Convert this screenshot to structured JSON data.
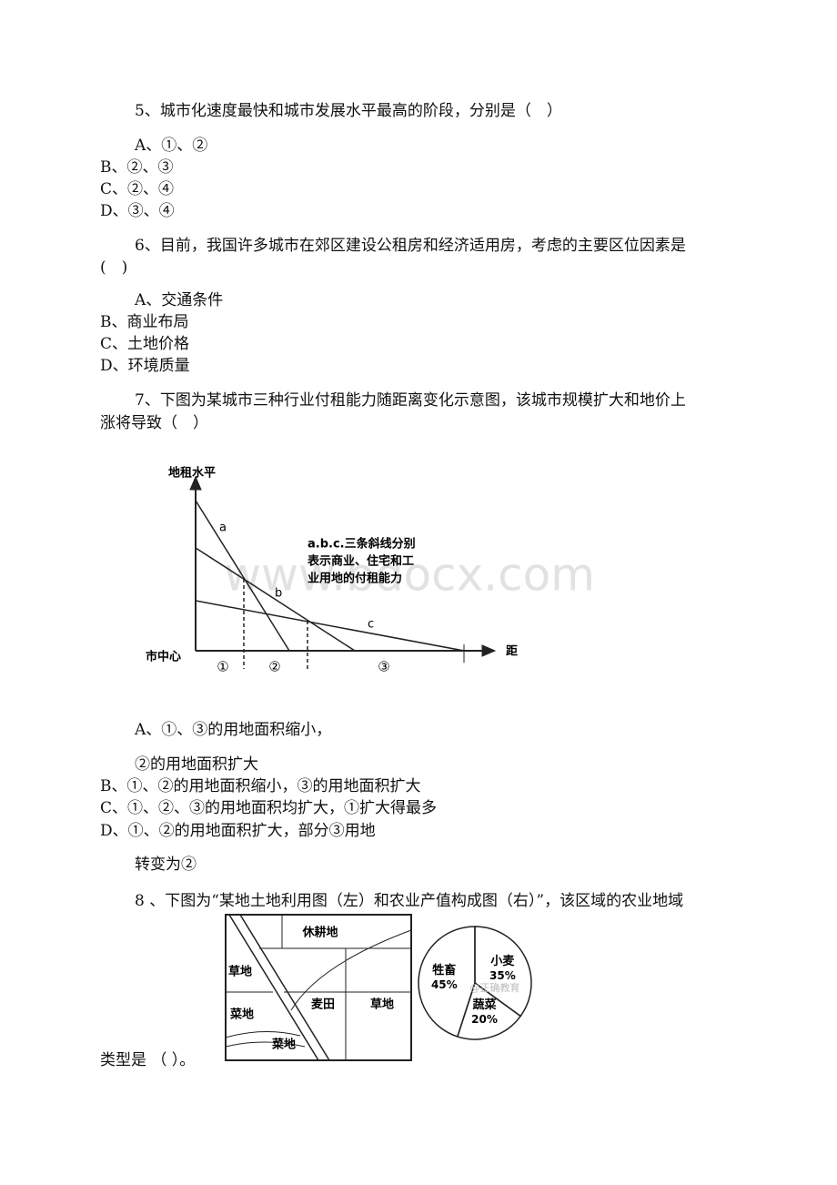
{
  "q5": {
    "stem": [
      "5、城市化速度最快和城市发展水平最高的阶段，分别是（　）"
    ],
    "options": [
      "A、①、②",
      "B、②、③",
      "C、②、④",
      "D、③、④"
    ]
  },
  "q6": {
    "stem": [
      "6、目前，我国许多城市在郊区建设公租房和经济适用房，考虑的主要区位因素是",
      "(　)"
    ],
    "options": [
      "A、交通条件",
      "B、商业布局",
      "C、土地价格",
      "D、环境质量"
    ]
  },
  "q7": {
    "stem": [
      "7、下图为某城市三种行业付租能力随距离变化示意图，该城市规模扩大和地价上",
      "涨将导致（　）"
    ],
    "figure": {
      "y_label": "地租水平",
      "x_label": "距",
      "origin": "市中心",
      "curves": [
        "a",
        "b",
        "c"
      ],
      "note": [
        "a.b.c.三条斜线分别",
        "表示商业、住宅和工",
        "业用地的付租能力"
      ],
      "zones": [
        "①",
        "②",
        "③"
      ],
      "watermark": "www.bdocx.com"
    },
    "option_lines": [
      "A、①、③的用地面积缩小，",
      "②的用地面积扩大",
      "B、①、②的用地面积缩小，③的用地面积扩大",
      "C、①、②、③的用地面积均扩大，①扩大得最多",
      "D、①、②的用地面积扩大，部分③用地",
      "转变为②"
    ]
  },
  "q8": {
    "stem": [
      "8 、下图为“某地土地利用图（左）和农业产值构成图（右）”，该区域的农业地域",
      "类型是 （ ）。"
    ],
    "map": {
      "labels": [
        "休耕地",
        "草地",
        "菜地",
        "麦田",
        "草地",
        "菜地"
      ]
    },
    "pie": {
      "categories": [
        "小麦",
        "蔬菜",
        "牲畜"
      ],
      "values": [
        35,
        20,
        45
      ],
      "value_labels": [
        "35%",
        "20%",
        "45%"
      ],
      "watermark": "@正确教育"
    }
  }
}
